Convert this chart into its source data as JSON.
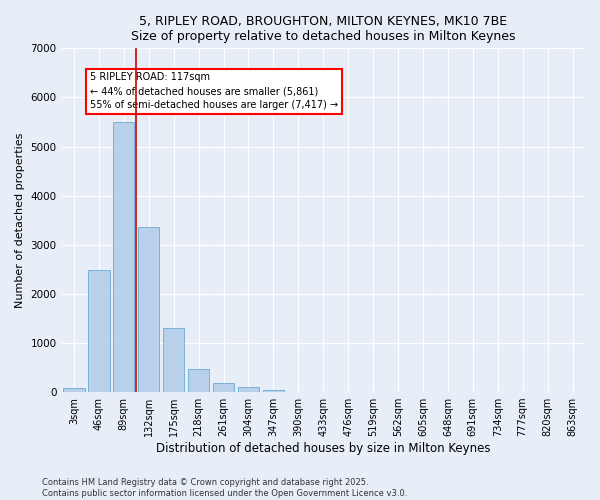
{
  "title_line1": "5, RIPLEY ROAD, BROUGHTON, MILTON KEYNES, MK10 7BE",
  "title_line2": "Size of property relative to detached houses in Milton Keynes",
  "xlabel": "Distribution of detached houses by size in Milton Keynes",
  "ylabel": "Number of detached properties",
  "categories": [
    "3sqm",
    "46sqm",
    "89sqm",
    "132sqm",
    "175sqm",
    "218sqm",
    "261sqm",
    "304sqm",
    "347sqm",
    "390sqm",
    "433sqm",
    "476sqm",
    "519sqm",
    "562sqm",
    "605sqm",
    "648sqm",
    "691sqm",
    "734sqm",
    "777sqm",
    "820sqm",
    "863sqm"
  ],
  "values": [
    90,
    2490,
    5490,
    3360,
    1310,
    460,
    185,
    95,
    45,
    10,
    5,
    2,
    1,
    0,
    0,
    0,
    0,
    0,
    0,
    0,
    0
  ],
  "bar_color": "#b8d0ea",
  "bar_edgecolor": "#6aaad4",
  "bg_color": "#e8eef8",
  "fig_color": "#e8eef8",
  "grid_color": "#ffffff",
  "vline_color": "#cc0000",
  "vline_x_index": 2.5,
  "annotation_text": "5 RIPLEY ROAD: 117sqm\n← 44% of detached houses are smaller (5,861)\n55% of semi-detached houses are larger (7,417) →",
  "ylim": [
    0,
    7000
  ],
  "yticks": [
    0,
    1000,
    2000,
    3000,
    4000,
    5000,
    6000,
    7000
  ],
  "footnote": "Contains HM Land Registry data © Crown copyright and database right 2025.\nContains public sector information licensed under the Open Government Licence v3.0."
}
